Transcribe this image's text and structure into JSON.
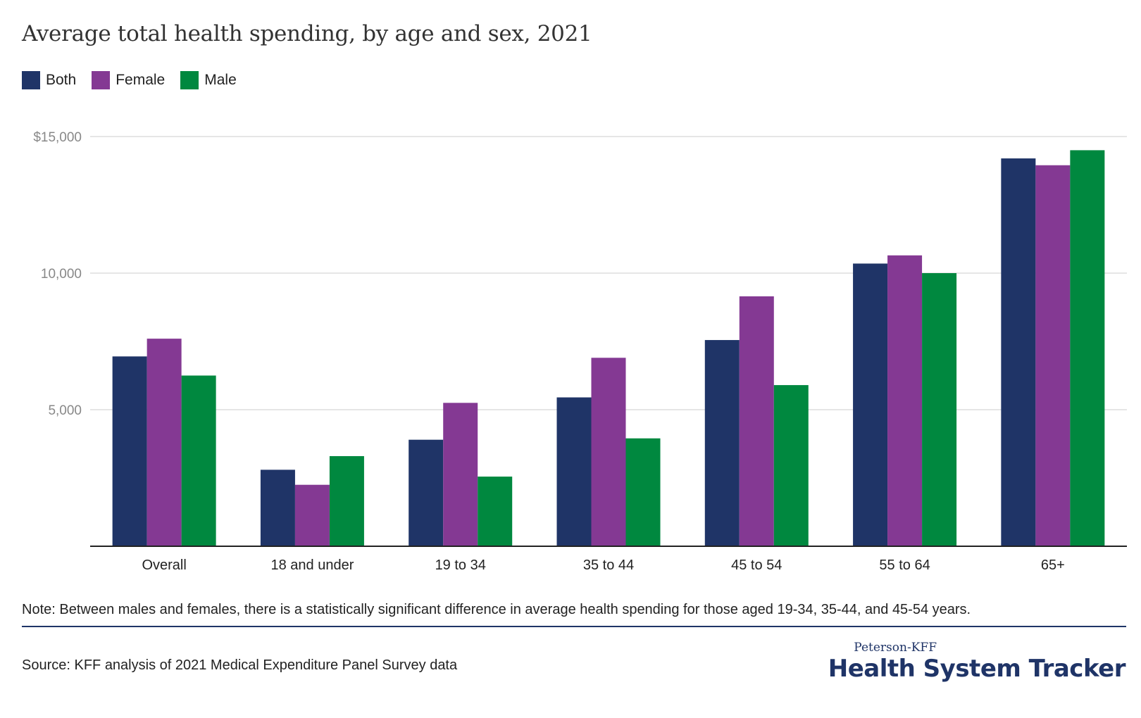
{
  "chart_data": {
    "type": "bar",
    "title": "Average total health spending, by age and sex, 2021",
    "categories": [
      "Overall",
      "18 and under",
      "19 to 34",
      "35 to 44",
      "45 to 54",
      "55 to 64",
      "65+"
    ],
    "series": [
      {
        "name": "Both",
        "color": "#1f3467",
        "values": [
          6950,
          2800,
          3900,
          5450,
          7550,
          10350,
          14200
        ]
      },
      {
        "name": "Female",
        "color": "#843993",
        "values": [
          7600,
          2250,
          5250,
          6900,
          9150,
          10650,
          13950
        ]
      },
      {
        "name": "Male",
        "color": "#00883f",
        "values": [
          6250,
          3300,
          2550,
          3950,
          5900,
          10000,
          14500
        ]
      }
    ],
    "y_ticks": [
      {
        "value": 5000,
        "label": "5,000"
      },
      {
        "value": 10000,
        "label": "10,000"
      },
      {
        "value": 15000,
        "label": "$15,000"
      }
    ],
    "ylim": [
      0,
      15000
    ],
    "grid": true,
    "legend": "top-left"
  },
  "note": "Note: Between males and females, there is a statistically significant difference in average health spending for those aged 19-34, 35-44, and 45-54 years.",
  "source": "Source: KFF analysis of 2021 Medical Expenditure Panel Survey data",
  "brand": {
    "top": "Peterson-KFF",
    "main": "Health System Tracker"
  }
}
